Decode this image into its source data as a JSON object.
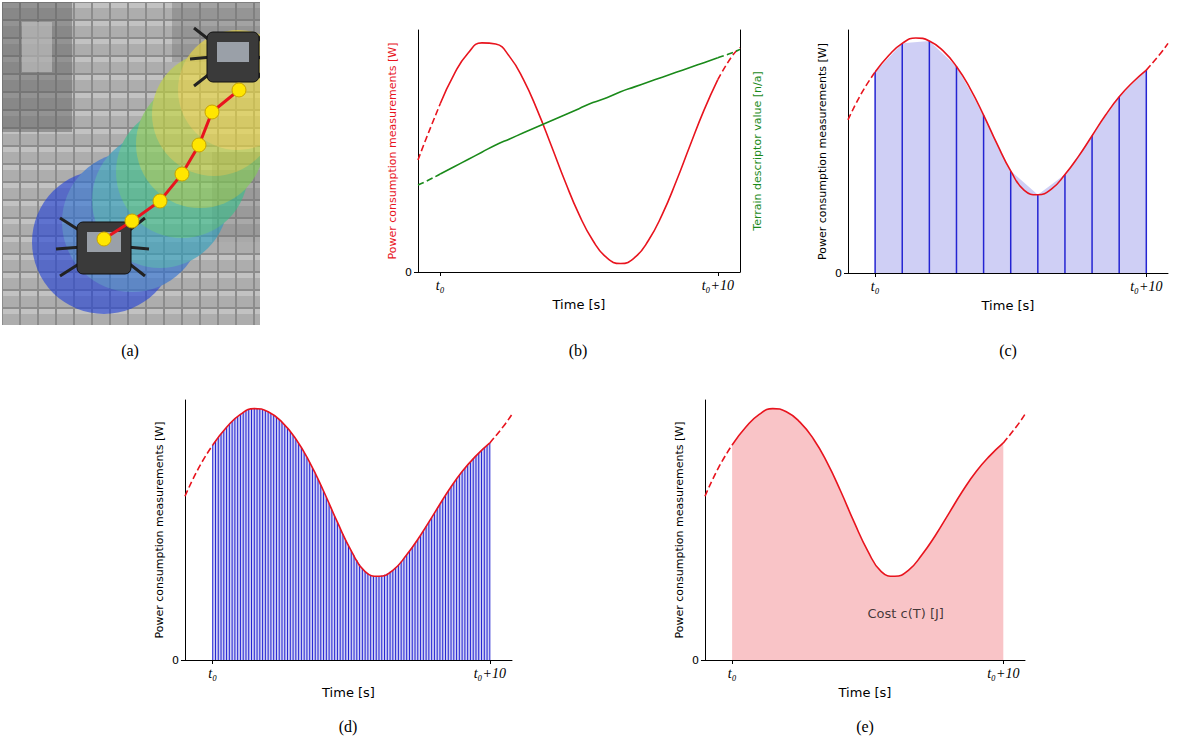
{
  "image": {
    "caption": "(a)"
  },
  "chart_data": [
    {
      "type": "line",
      "caption": "(b)",
      "xlabel": "Time [s]",
      "ylabel": "Power consumption measurements [W]",
      "y2label": "Terrain descriptor value [n/a]",
      "x": [
        -0.8,
        -0.5,
        0,
        0.5,
        1,
        1.5,
        2,
        2.5,
        3,
        3.5,
        4,
        4.5,
        5,
        5.5,
        6,
        6.5,
        7,
        7.5,
        8,
        8.5,
        9,
        9.5,
        10,
        10.5,
        10.8
      ],
      "xlim": [
        -0.8,
        10.8
      ],
      "xticks": [
        {
          "value": 0,
          "label": "t₀"
        },
        {
          "value": 10,
          "label": "t₀+10"
        }
      ],
      "ylim": [
        0,
        10
      ],
      "yticks": [
        0
      ],
      "y2lim": [
        0,
        10
      ],
      "y2ticks": [],
      "series": [
        {
          "color": "#e8141e",
          "line_style": "dashed",
          "values": [
            4.63,
            5.53,
            6.95,
            null,
            null,
            null,
            null,
            null,
            null,
            null,
            null,
            null,
            null,
            null,
            null,
            null,
            null,
            null,
            null,
            null,
            null,
            null,
            null,
            null,
            null
          ]
        },
        {
          "color": "#e8141e",
          "line_style": "solid",
          "values": [
            null,
            null,
            6.95,
            8.17,
            9.04,
            9.47,
            9.42,
            8.9,
            7.95,
            6.68,
            5.23,
            3.74,
            2.38,
            1.3,
            0.59,
            0.35,
            0.59,
            1.3,
            2.38,
            3.74,
            5.23,
            6.68,
            7.95,
            null,
            null
          ]
        },
        {
          "color": "#e8141e",
          "line_style": "dashed",
          "values": [
            null,
            null,
            null,
            null,
            null,
            null,
            null,
            null,
            null,
            null,
            null,
            null,
            null,
            null,
            null,
            null,
            null,
            null,
            null,
            null,
            null,
            null,
            7.95,
            8.9,
            9.27
          ]
        },
        {
          "axis": "y2",
          "color": "#1a8a1a",
          "line_style": "dashed",
          "values": [
            3.6,
            3.75,
            4.05,
            null,
            null,
            null,
            null,
            null,
            null,
            null,
            null,
            null,
            null,
            null,
            null,
            null,
            null,
            null,
            null,
            null,
            null,
            null,
            null,
            null,
            null
          ]
        },
        {
          "axis": "y2",
          "color": "#1a8a1a",
          "line_style": "solid",
          "values": [
            null,
            null,
            4.05,
            4.35,
            4.65,
            4.95,
            5.25,
            5.5,
            5.75,
            6.0,
            6.25,
            6.5,
            6.75,
            7.0,
            7.2,
            7.45,
            7.65,
            7.85,
            8.05,
            8.25,
            8.45,
            8.65,
            8.85,
            null,
            null
          ]
        },
        {
          "axis": "y2",
          "color": "#1a8a1a",
          "line_style": "dashed",
          "values": [
            null,
            null,
            null,
            null,
            null,
            null,
            null,
            null,
            null,
            null,
            null,
            null,
            null,
            null,
            null,
            null,
            null,
            null,
            null,
            null,
            null,
            null,
            8.85,
            9.05,
            9.2
          ]
        }
      ]
    },
    {
      "type": "line",
      "caption": "(c)",
      "xlabel": "Time [s]",
      "ylabel": "Power consumption measurements [W]",
      "x": [
        -1,
        -0.5,
        0,
        0.5,
        1,
        1.5,
        2,
        2.5,
        3,
        3.5,
        4,
        4.5,
        5,
        5.5,
        6,
        6.5,
        7,
        7.5,
        8,
        8.5,
        9,
        9.5,
        10,
        10.5,
        10.8
      ],
      "xlim": [
        -1,
        10.8
      ],
      "xticks": [
        {
          "value": 0,
          "label": "t₀"
        },
        {
          "value": 10,
          "label": "t₀+10"
        }
      ],
      "ylim": [
        0,
        10
      ],
      "yticks": [
        0
      ],
      "series": [
        {
          "type": "area_bar",
          "color": "#2424d2",
          "x": [
            0,
            1,
            2,
            3,
            4,
            5,
            6,
            7,
            8,
            9,
            10
          ],
          "values": [
            8.27,
            9.45,
            9.55,
            8.5,
            6.5,
            4.2,
            3.22,
            4.05,
            5.65,
            7.25,
            8.35
          ]
        },
        {
          "color": "#e8141e",
          "line_style": "dashed",
          "values": [
            6.3,
            7.4,
            8.27,
            null,
            null,
            null,
            null,
            null,
            null,
            null,
            null,
            null,
            null,
            null,
            null,
            null,
            null,
            null,
            null,
            null,
            null,
            null,
            null,
            null,
            null
          ]
        },
        {
          "color": "#e8141e",
          "line_style": "solid",
          "values": [
            null,
            null,
            8.27,
            8.95,
            9.45,
            9.67,
            9.55,
            9.15,
            8.5,
            7.6,
            6.5,
            5.3,
            4.2,
            3.4,
            3.22,
            3.45,
            4.05,
            4.8,
            5.65,
            6.5,
            7.25,
            7.85,
            8.35,
            null,
            null
          ]
        },
        {
          "color": "#e8141e",
          "line_style": "dashed",
          "values": [
            null,
            null,
            null,
            null,
            null,
            null,
            null,
            null,
            null,
            null,
            null,
            null,
            null,
            null,
            null,
            null,
            null,
            null,
            null,
            null,
            null,
            null,
            8.35,
            9.0,
            9.45
          ]
        }
      ]
    },
    {
      "type": "line",
      "caption": "(d)",
      "xlabel": "Time [s]",
      "ylabel": "Power consumption measurements [W]",
      "x": [
        -1,
        -0.5,
        0,
        0.5,
        1,
        1.5,
        2,
        2.5,
        3,
        3.5,
        4,
        4.5,
        5,
        5.5,
        6,
        6.5,
        7,
        7.5,
        8,
        8.5,
        9,
        9.5,
        10,
        10.5,
        10.8
      ],
      "xlim": [
        -1,
        10.8
      ],
      "xticks": [
        {
          "value": 0,
          "label": "t₀"
        },
        {
          "value": 10,
          "label": "t₀+10"
        }
      ],
      "ylim": [
        0,
        10
      ],
      "yticks": [
        0
      ],
      "series": [
        {
          "type": "area_bar",
          "color": "#2424d2",
          "x": [
            0,
            0.1,
            0.2,
            0.3,
            0.4,
            0.5,
            0.6,
            0.7,
            0.8,
            0.9,
            1,
            1.1,
            1.2,
            1.3,
            1.4,
            1.5,
            1.6,
            1.7,
            1.8,
            1.9,
            2,
            2.1,
            2.2,
            2.3,
            2.4,
            2.5,
            2.6,
            2.7,
            2.8,
            2.9,
            3,
            3.1,
            3.2,
            3.3,
            3.4,
            3.5,
            3.6,
            3.7,
            3.8,
            3.9,
            4,
            4.1,
            4.2,
            4.3,
            4.4,
            4.5,
            4.6,
            4.7,
            4.8,
            4.9,
            5,
            5.1,
            5.2,
            5.3,
            5.4,
            5.5,
            5.6,
            5.7,
            5.8,
            5.9,
            6,
            6.1,
            6.2,
            6.3,
            6.4,
            6.5,
            6.6,
            6.7,
            6.8,
            6.9,
            7,
            7.1,
            7.2,
            7.3,
            7.4,
            7.5,
            7.6,
            7.7,
            7.8,
            7.9,
            8,
            8.1,
            8.2,
            8.3,
            8.4,
            8.5,
            8.6,
            8.7,
            8.8,
            8.9,
            9,
            9.1,
            9.2,
            9.3,
            9.4,
            9.5,
            9.6,
            9.7,
            9.8,
            9.9,
            10
          ],
          "values": [
            8.27,
            8.41,
            8.55,
            8.69,
            8.82,
            8.95,
            9.06,
            9.17,
            9.27,
            9.36,
            9.45,
            9.52,
            9.58,
            9.63,
            9.66,
            9.67,
            9.67,
            9.65,
            9.62,
            9.59,
            9.55,
            9.48,
            9.41,
            9.33,
            9.24,
            9.15,
            9.03,
            8.91,
            8.78,
            8.64,
            8.5,
            8.33,
            8.16,
            7.98,
            7.79,
            7.6,
            7.39,
            7.17,
            6.95,
            6.73,
            6.5,
            6.26,
            6.02,
            5.78,
            5.54,
            5.3,
            5.07,
            4.85,
            4.62,
            4.41,
            4.2,
            4.02,
            3.85,
            3.69,
            3.54,
            3.4,
            3.32,
            3.26,
            3.23,
            3.22,
            3.22,
            3.24,
            3.28,
            3.33,
            3.39,
            3.45,
            3.55,
            3.66,
            3.78,
            3.91,
            4.05,
            4.19,
            4.34,
            4.49,
            4.64,
            4.8,
            4.97,
            5.14,
            5.31,
            5.48,
            5.65,
            5.82,
            5.99,
            6.16,
            6.33,
            6.5,
            6.66,
            6.81,
            6.96,
            7.11,
            7.25,
            7.38,
            7.5,
            7.62,
            7.74,
            7.85,
            7.95,
            8.05,
            8.15,
            8.25,
            8.35
          ]
        },
        {
          "color": "#e8141e",
          "line_style": "dashed",
          "values": [
            6.3,
            7.4,
            8.27,
            null,
            null,
            null,
            null,
            null,
            null,
            null,
            null,
            null,
            null,
            null,
            null,
            null,
            null,
            null,
            null,
            null,
            null,
            null,
            null,
            null,
            null
          ]
        },
        {
          "color": "#e8141e",
          "line_style": "solid",
          "values": [
            null,
            null,
            8.27,
            8.95,
            9.45,
            9.67,
            9.55,
            9.15,
            8.5,
            7.6,
            6.5,
            5.3,
            4.2,
            3.4,
            3.22,
            3.45,
            4.05,
            4.8,
            5.65,
            6.5,
            7.25,
            7.85,
            8.35,
            null,
            null
          ]
        },
        {
          "color": "#e8141e",
          "line_style": "dashed",
          "values": [
            null,
            null,
            null,
            null,
            null,
            null,
            null,
            null,
            null,
            null,
            null,
            null,
            null,
            null,
            null,
            null,
            null,
            null,
            null,
            null,
            null,
            null,
            8.35,
            9.0,
            9.45
          ]
        }
      ]
    },
    {
      "type": "line",
      "caption": "(e)",
      "xlabel": "Time [s]",
      "ylabel": "Power consumption measurements [W]",
      "x": [
        -1,
        -0.5,
        0,
        0.5,
        1,
        1.5,
        2,
        2.5,
        3,
        3.5,
        4,
        4.5,
        5,
        5.5,
        6,
        6.5,
        7,
        7.5,
        8,
        8.5,
        9,
        9.5,
        10,
        10.5,
        10.8
      ],
      "xlim": [
        -1,
        10.8
      ],
      "xticks": [
        {
          "value": 0,
          "label": "t₀"
        },
        {
          "value": 10,
          "label": "t₀+10"
        }
      ],
      "ylim": [
        0,
        10
      ],
      "yticks": [
        0
      ],
      "series": [
        {
          "color": "#e8141e",
          "line_style": "dashed",
          "values": [
            6.3,
            7.4,
            8.27,
            null,
            null,
            null,
            null,
            null,
            null,
            null,
            null,
            null,
            null,
            null,
            null,
            null,
            null,
            null,
            null,
            null,
            null,
            null,
            null,
            null,
            null
          ]
        },
        {
          "type": "area",
          "color": "#e8141e",
          "line_style": "solid",
          "values": [
            null,
            null,
            8.27,
            8.95,
            9.45,
            9.67,
            9.55,
            9.15,
            8.5,
            7.6,
            6.5,
            5.3,
            4.2,
            3.4,
            3.22,
            3.45,
            4.05,
            4.8,
            5.65,
            6.5,
            7.25,
            7.85,
            8.35,
            null,
            null
          ]
        },
        {
          "color": "#e8141e",
          "line_style": "dashed",
          "values": [
            null,
            null,
            null,
            null,
            null,
            null,
            null,
            null,
            null,
            null,
            null,
            null,
            null,
            null,
            null,
            null,
            null,
            null,
            null,
            null,
            null,
            null,
            8.35,
            9.0,
            9.45
          ]
        }
      ],
      "annotations": [
        {
          "text": "Cost c(T) [J]",
          "x": 6.4,
          "y": 1.8
        }
      ]
    }
  ]
}
